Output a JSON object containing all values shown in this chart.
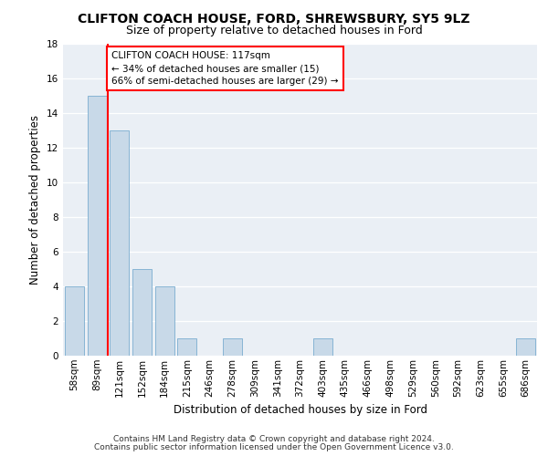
{
  "title1": "CLIFTON COACH HOUSE, FORD, SHREWSBURY, SY5 9LZ",
  "title2": "Size of property relative to detached houses in Ford",
  "xlabel": "Distribution of detached houses by size in Ford",
  "ylabel": "Number of detached properties",
  "categories": [
    "58sqm",
    "89sqm",
    "121sqm",
    "152sqm",
    "184sqm",
    "215sqm",
    "246sqm",
    "278sqm",
    "309sqm",
    "341sqm",
    "372sqm",
    "403sqm",
    "435sqm",
    "466sqm",
    "498sqm",
    "529sqm",
    "560sqm",
    "592sqm",
    "623sqm",
    "655sqm",
    "686sqm"
  ],
  "values": [
    4,
    15,
    13,
    5,
    4,
    1,
    0,
    1,
    0,
    0,
    0,
    1,
    0,
    0,
    0,
    0,
    0,
    0,
    0,
    0,
    1
  ],
  "bar_color": "#c8d9e8",
  "bar_edge_color": "#7aadcf",
  "vline_color": "red",
  "annotation_title": "CLIFTON COACH HOUSE: 117sqm",
  "annotation_line1": "← 34% of detached houses are smaller (15)",
  "annotation_line2": "66% of semi-detached houses are larger (29) →",
  "annotation_box_color": "white",
  "annotation_box_edge_color": "red",
  "ylim": [
    0,
    18
  ],
  "yticks": [
    0,
    2,
    4,
    6,
    8,
    10,
    12,
    14,
    16,
    18
  ],
  "footer1": "Contains HM Land Registry data © Crown copyright and database right 2024.",
  "footer2": "Contains public sector information licensed under the Open Government Licence v3.0.",
  "bg_color": "#eaeff5",
  "grid_color": "#ffffff",
  "title1_fontsize": 10,
  "title2_fontsize": 9,
  "xlabel_fontsize": 8.5,
  "ylabel_fontsize": 8.5,
  "footer_fontsize": 6.5,
  "tick_fontsize": 7.5,
  "annotation_fontsize": 7.5
}
